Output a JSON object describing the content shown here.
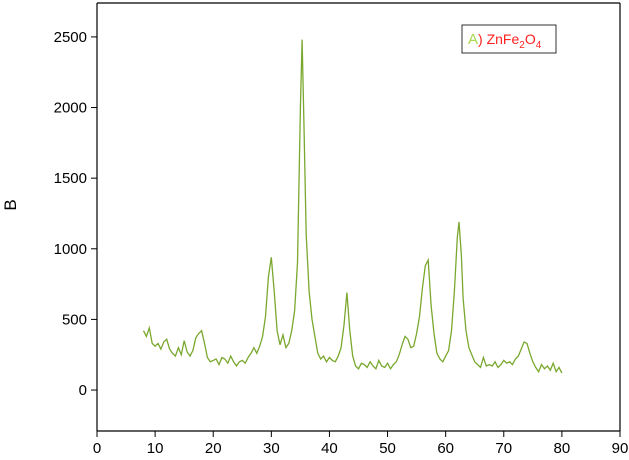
{
  "chart_data": {
    "type": "line",
    "y_label": "B",
    "xlim": [
      0,
      90
    ],
    "xticks": [
      0,
      10,
      20,
      30,
      40,
      50,
      60,
      70,
      80,
      90
    ],
    "ylim": [
      -290,
      2740
    ],
    "yticks": [
      0,
      500,
      1000,
      1500,
      2000,
      2500
    ],
    "grid": false,
    "legend": "upper right",
    "legend_label_parts": [
      ") ZnFe",
      "2",
      "O",
      "4"
    ],
    "legend_label_color": "#ff2020",
    "series": [
      {
        "name": "A",
        "color": "#7aa82e",
        "x": [
          8,
          8.5,
          9,
          9.5,
          10,
          10.5,
          11,
          11.5,
          12,
          12.5,
          13,
          13.5,
          14,
          14.5,
          15,
          15.5,
          16,
          16.5,
          17,
          17.5,
          18,
          18.5,
          19,
          19.5,
          20,
          20.5,
          21,
          21.5,
          22,
          22.5,
          23,
          23.5,
          24,
          24.5,
          25,
          25.5,
          26,
          26.5,
          27,
          27.5,
          28,
          28.5,
          29,
          29.5,
          30,
          30.5,
          31,
          31.5,
          32,
          32.5,
          33,
          33.5,
          34,
          34.5,
          35,
          35.3,
          35.6,
          36,
          36.5,
          37,
          37.5,
          38,
          38.5,
          39,
          39.5,
          40,
          40.5,
          41,
          41.5,
          42,
          42.5,
          43,
          43.5,
          44,
          44.5,
          45,
          45.5,
          46,
          46.5,
          47,
          47.5,
          48,
          48.5,
          49,
          49.5,
          50,
          50.5,
          51,
          51.5,
          52,
          52.5,
          53,
          53.5,
          54,
          54.5,
          55,
          55.5,
          56,
          56.5,
          57,
          57.5,
          58,
          58.5,
          59,
          59.5,
          60,
          60.5,
          61,
          61.5,
          62,
          62.3,
          62.7,
          63,
          63.5,
          64,
          64.5,
          65,
          65.5,
          66,
          66.5,
          67,
          67.5,
          68,
          68.5,
          69,
          69.5,
          70,
          70.5,
          71,
          71.5,
          72,
          72.5,
          73,
          73.5,
          74,
          74.5,
          75,
          75.5,
          76,
          76.5,
          77,
          77.5,
          78,
          78.5,
          79,
          79.5,
          80
        ],
        "values": [
          420,
          380,
          440,
          330,
          310,
          330,
          290,
          340,
          360,
          290,
          260,
          240,
          300,
          250,
          350,
          270,
          240,
          280,
          370,
          400,
          420,
          330,
          230,
          200,
          210,
          220,
          180,
          230,
          220,
          190,
          240,
          200,
          170,
          200,
          210,
          190,
          230,
          260,
          300,
          260,
          310,
          380,
          520,
          800,
          940,
          700,
          420,
          320,
          390,
          300,
          330,
          420,
          560,
          900,
          2000,
          2480,
          1900,
          1100,
          700,
          500,
          380,
          260,
          220,
          240,
          200,
          230,
          210,
          200,
          240,
          300,
          460,
          690,
          420,
          240,
          170,
          150,
          190,
          180,
          160,
          200,
          170,
          150,
          210,
          170,
          160,
          190,
          150,
          180,
          200,
          250,
          320,
          380,
          360,
          300,
          310,
          400,
          520,
          720,
          880,
          920,
          600,
          400,
          260,
          220,
          200,
          240,
          280,
          420,
          700,
          1080,
          1190,
          950,
          650,
          420,
          300,
          250,
          200,
          180,
          160,
          230,
          170,
          180,
          170,
          200,
          160,
          180,
          210,
          190,
          200,
          180,
          220,
          240,
          290,
          340,
          330,
          260,
          200,
          160,
          130,
          180,
          150,
          170,
          140,
          190,
          130,
          160,
          120
        ]
      }
    ]
  }
}
